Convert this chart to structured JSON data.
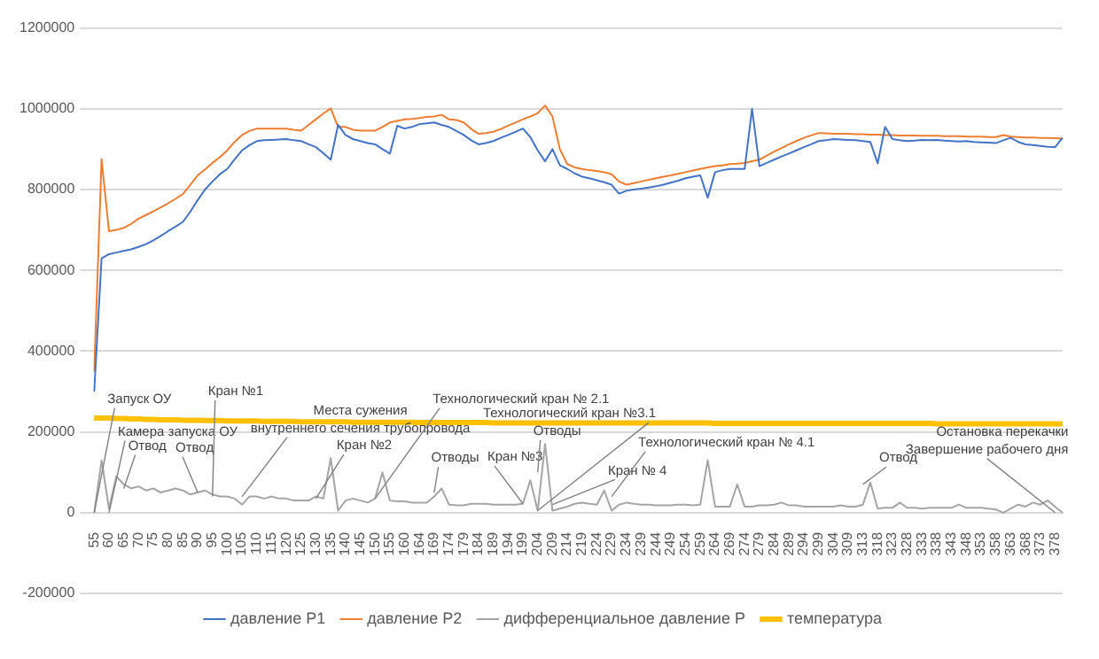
{
  "chart_data": {
    "type": "line",
    "categories": [
      "55",
      null,
      "60",
      null,
      "65",
      null,
      "70",
      null,
      "75",
      null,
      "80",
      null,
      "85",
      null,
      "90",
      null,
      "95",
      null,
      "100",
      null,
      "105",
      null,
      "110",
      null,
      "115",
      null,
      "120",
      null,
      "125",
      null,
      "130",
      null,
      "135",
      null,
      "140",
      null,
      "145",
      null,
      "150",
      null,
      "155",
      null,
      "160",
      null,
      "164",
      null,
      "169",
      null,
      "174",
      null,
      "179",
      null,
      "184",
      null,
      "189",
      null,
      "194",
      null,
      "199",
      null,
      "204",
      null,
      "209",
      null,
      "214",
      null,
      "219",
      null,
      "224",
      null,
      "229",
      null,
      "234",
      null,
      "239",
      null,
      "244",
      null,
      "249",
      null,
      "254",
      null,
      "259",
      null,
      "264",
      null,
      "269",
      null,
      "274",
      null,
      "279",
      null,
      "284",
      null,
      "289",
      null,
      "294",
      null,
      "299",
      null,
      "304",
      null,
      "309",
      null,
      "313",
      null,
      "318",
      null,
      "323",
      null,
      "328",
      null,
      "333",
      null,
      "338",
      null,
      "343",
      null,
      "348",
      null,
      "353",
      null,
      "358",
      null,
      "363",
      null,
      "368",
      null,
      "373",
      null,
      "378",
      null
    ],
    "series": [
      {
        "name": "давление P1",
        "color": "#4472c4",
        "values": [
          300000,
          630000,
          640000,
          644000,
          648000,
          652000,
          658000,
          665000,
          674000,
          685000,
          697000,
          708000,
          720000,
          745000,
          774000,
          800000,
          820000,
          838000,
          851000,
          875000,
          897000,
          910000,
          920000,
          922000,
          923000,
          924000,
          925000,
          922000,
          920000,
          912000,
          905000,
          890000,
          874000,
          960000,
          935000,
          925000,
          920000,
          915000,
          912000,
          900000,
          889000,
          958000,
          951000,
          955000,
          962000,
          964000,
          966000,
          960000,
          955000,
          945000,
          935000,
          922000,
          912000,
          915000,
          920000,
          928000,
          935000,
          943000,
          951000,
          930000,
          897000,
          870000,
          900000,
          860000,
          851000,
          840000,
          832000,
          828000,
          823000,
          818000,
          812000,
          790000,
          797000,
          800000,
          802000,
          805000,
          808000,
          812000,
          817000,
          822000,
          828000,
          832000,
          835000,
          780000,
          843000,
          848000,
          851000,
          851000,
          851000,
          1000000,
          858000,
          866000,
          874000,
          882000,
          889000,
          897000,
          905000,
          912000,
          920000,
          922000,
          925000,
          924000,
          923000,
          922000,
          920000,
          918000,
          865000,
          955000,
          925000,
          922000,
          920000,
          921000,
          923000,
          922000,
          923000,
          921000,
          920000,
          919000,
          920000,
          918000,
          917000,
          916000,
          915000,
          922000,
          928000,
          918000,
          912000,
          910000,
          908000,
          906000,
          905000,
          928000
        ]
      },
      {
        "name": "давление P2",
        "color": "#ed7d31",
        "values": [
          350000,
          875000,
          697000,
          700000,
          705000,
          715000,
          728000,
          737000,
          746000,
          756000,
          766000,
          777000,
          789000,
          812000,
          835000,
          850000,
          866000,
          880000,
          897000,
          918000,
          935000,
          945000,
          951000,
          951000,
          951000,
          951000,
          951000,
          948000,
          946000,
          960000,
          974000,
          988000,
          1001000,
          955000,
          955000,
          948000,
          946000,
          946000,
          946000,
          955000,
          966000,
          970000,
          974000,
          975000,
          977000,
          980000,
          981000,
          985000,
          974000,
          972000,
          966000,
          950000,
          938000,
          940000,
          943000,
          950000,
          958000,
          966000,
          974000,
          981000,
          989000,
          1008000,
          981000,
          900000,
          863000,
          855000,
          851000,
          848000,
          846000,
          843000,
          838000,
          820000,
          812000,
          816000,
          820000,
          824000,
          828000,
          832000,
          835000,
          839000,
          843000,
          847000,
          851000,
          855000,
          858000,
          860000,
          863000,
          864000,
          866000,
          870000,
          874000,
          884000,
          894000,
          903000,
          912000,
          920000,
          928000,
          934000,
          940000,
          939000,
          938000,
          938000,
          938000,
          937000,
          937000,
          936000,
          936000,
          935000,
          935000,
          934000,
          934000,
          934000,
          933000,
          933000,
          933000,
          932000,
          932000,
          932000,
          931000,
          931000,
          931000,
          930000,
          930000,
          935000,
          931000,
          930000,
          929000,
          929000,
          928000,
          928000,
          927000,
          926000
        ]
      },
      {
        "name": "дифференциальное давление P",
        "color": "#a5a5a5",
        "values": [
          0,
          130000,
          10000,
          90000,
          70000,
          60000,
          65000,
          55000,
          60000,
          50000,
          55000,
          60000,
          55000,
          45000,
          50000,
          55000,
          45000,
          40000,
          40000,
          35000,
          20000,
          40000,
          40000,
          35000,
          40000,
          35000,
          35000,
          30000,
          30000,
          30000,
          40000,
          35000,
          135000,
          5000,
          30000,
          35000,
          30000,
          25000,
          35000,
          100000,
          30000,
          28000,
          28000,
          25000,
          25000,
          25000,
          40000,
          60000,
          20000,
          18000,
          18000,
          22000,
          22000,
          22000,
          20000,
          20000,
          20000,
          20000,
          22000,
          80000,
          5000,
          170000,
          5000,
          10000,
          15000,
          22000,
          25000,
          22000,
          20000,
          55000,
          5000,
          20000,
          25000,
          22000,
          20000,
          20000,
          18000,
          18000,
          18000,
          20000,
          20000,
          18000,
          20000,
          130000,
          15000,
          15000,
          15000,
          70000,
          15000,
          15000,
          18000,
          18000,
          20000,
          25000,
          18000,
          18000,
          15000,
          15000,
          15000,
          15000,
          15000,
          18000,
          15000,
          15000,
          20000,
          75000,
          10000,
          12000,
          12000,
          25000,
          12000,
          12000,
          10000,
          12000,
          12000,
          12000,
          12000,
          20000,
          12000,
          12000,
          12000,
          10000,
          8000,
          0,
          10000,
          20000,
          15000,
          25000,
          20000,
          30000,
          15000,
          0
        ]
      },
      {
        "name": "температура",
        "color": "#ffc000",
        "values": [
          235000,
          234000,
          234000,
          233000,
          233000,
          232000,
          232000,
          231000,
          231000,
          230000,
          230000,
          230000,
          229000,
          229000,
          229000,
          228000,
          228000,
          228000,
          227000,
          227000,
          227000,
          227000,
          227000,
          226000,
          226000,
          226000,
          226000,
          226000,
          225000,
          225000,
          225000,
          225000,
          225000,
          225000,
          225000,
          224000,
          224000,
          224000,
          224000,
          224000,
          224000,
          224000,
          224000,
          224000,
          223000,
          223000,
          223000,
          223000,
          223000,
          223000,
          223000,
          223000,
          223000,
          223000,
          222000,
          222000,
          222000,
          222000,
          222000,
          222000,
          222000,
          222000,
          222000,
          222000,
          222000,
          222000,
          222000,
          222000,
          222000,
          222000,
          222000,
          222000,
          222000,
          222000,
          222000,
          222000,
          222000,
          222000,
          222000,
          222000,
          222000,
          222000,
          222000,
          222000,
          221000,
          221000,
          221000,
          221000,
          221000,
          221000,
          221000,
          221000,
          221000,
          221000,
          221000,
          221000,
          221000,
          221000,
          221000,
          221000,
          221000,
          221000,
          221000,
          221000,
          221000,
          221000,
          221000,
          221000,
          221000,
          221000,
          221000,
          221000,
          221000,
          221000,
          220000,
          220000,
          220000,
          220000,
          220000,
          220000,
          220000,
          220000,
          220000,
          220000,
          220000,
          220000,
          220000,
          220000,
          220000,
          220000,
          220000,
          220000
        ]
      }
    ],
    "ylim": [
      -200000,
      1200000
    ],
    "yticks": [
      -200000,
      0,
      200000,
      400000,
      600000,
      800000,
      1000000,
      1200000
    ],
    "grid": "y",
    "legend": "bottom",
    "marker": "none",
    "annotations": [
      {
        "text": "Запуск ОУ",
        "x": "55",
        "y": 0
      },
      {
        "text": "Камера запуска ОУ",
        "x": "60",
        "y": 0
      },
      {
        "text": "Отвод",
        "x": "65",
        "y": 60000
      },
      {
        "text": "Отвод",
        "x": "90",
        "y": 50000
      },
      {
        "text": "Кран №1",
        "x": "95",
        "y": 40000
      },
      {
        "text": "Места сужения\nвнутреннего сечения трубопровода",
        "x": "105",
        "y": 40000
      },
      {
        "text": "Кран №2",
        "x": "130",
        "y": 35000
      },
      {
        "text": "Технологический кран № 2.1",
        "x": "150",
        "y": 35000
      },
      {
        "text": "Отводы",
        "x": "169",
        "y": 50000
      },
      {
        "text": "Кран №3",
        "x": "199",
        "y": 22000
      },
      {
        "text": "Технологический кран №3.1",
        "x": "204",
        "y": 5000
      },
      {
        "text": "Отводы",
        "x": "204",
        "y": 100000
      },
      {
        "text": "Кран № 4",
        "x": "209",
        "y": 20000
      },
      {
        "text": "Технологический кран № 4.1",
        "x": "229",
        "y": 40000
      },
      {
        "text": "Отвод",
        "x": "313",
        "y": 70000
      },
      {
        "text": "Остановка перекачки\nЗавершение рабочего дня",
        "x": "378",
        "y": 0
      }
    ]
  }
}
